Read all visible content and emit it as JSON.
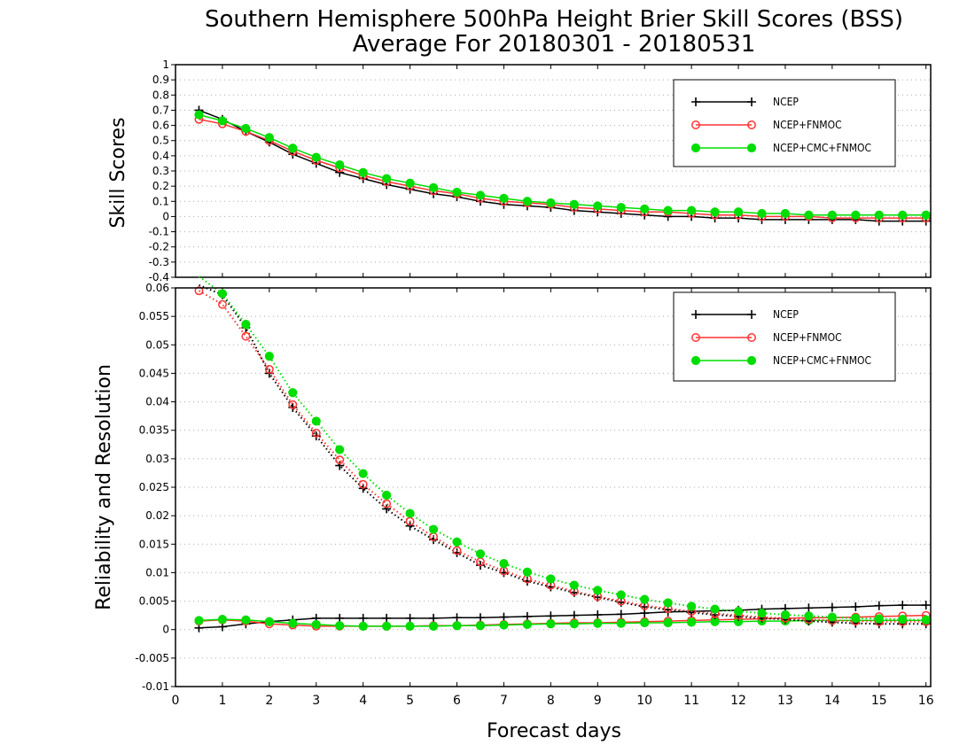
{
  "title_line1": "Southern Hemisphere 500hPa Height Brier Skill Scores (BSS)",
  "title_line2": "Average For 20180301 - 20180531",
  "xlabel": "Forecast days",
  "colors": {
    "NCEP": "#000000",
    "NCEP+FNMOC": "#ff3333",
    "NCEP+CMC+FNMOC": "#00dd00"
  },
  "x_ticks": [
    "0",
    "1",
    "2",
    "3",
    "4",
    "5",
    "6",
    "7",
    "8",
    "9",
    "10",
    "11",
    "12",
    "13",
    "14",
    "15",
    "16"
  ],
  "chart_data": [
    {
      "type": "line",
      "ylabel": "Skill Scores",
      "xlim": [
        0,
        16.1
      ],
      "ylim": [
        -0.4,
        1
      ],
      "grid": "horizontal dotted",
      "legend_placement": "top-right",
      "y_ticks": [
        "1",
        "0.9",
        "0.8",
        "0.7",
        "0.6",
        "0.5",
        "0.4",
        "0.3",
        "0.2",
        "0.1",
        "0",
        "-0.1",
        "-0.2",
        "-0.3",
        "-0.4"
      ],
      "x": [
        0.5,
        1,
        1.5,
        2,
        2.5,
        3,
        3.5,
        4,
        4.5,
        5,
        5.5,
        6,
        6.5,
        7,
        7.5,
        8,
        8.5,
        9,
        9.5,
        10,
        10.5,
        11,
        11.5,
        12,
        12.5,
        13,
        13.5,
        14,
        14.5,
        15,
        15.5,
        16
      ],
      "series": [
        {
          "name": "NCEP",
          "style": "solid",
          "marker": "plus",
          "values": [
            0.7,
            0.64,
            0.56,
            0.49,
            0.41,
            0.35,
            0.29,
            0.25,
            0.21,
            0.18,
            0.15,
            0.13,
            0.1,
            0.08,
            0.07,
            0.06,
            0.04,
            0.03,
            0.02,
            0.01,
            0.0,
            0.0,
            -0.01,
            -0.01,
            -0.02,
            -0.02,
            -0.02,
            -0.02,
            -0.02,
            -0.03,
            -0.03,
            -0.03
          ]
        },
        {
          "name": "NCEP+FNMOC",
          "style": "solid",
          "marker": "open-circle",
          "values": [
            0.64,
            0.61,
            0.56,
            0.5,
            0.43,
            0.37,
            0.32,
            0.27,
            0.23,
            0.2,
            0.17,
            0.15,
            0.12,
            0.1,
            0.09,
            0.08,
            0.06,
            0.05,
            0.04,
            0.03,
            0.03,
            0.02,
            0.01,
            0.01,
            0.0,
            0.0,
            0.0,
            -0.01,
            -0.01,
            -0.01,
            -0.01,
            -0.01
          ]
        },
        {
          "name": "NCEP+CMC+FNMOC",
          "style": "solid",
          "marker": "filled-circle",
          "values": [
            0.67,
            0.63,
            0.58,
            0.52,
            0.45,
            0.39,
            0.34,
            0.29,
            0.25,
            0.22,
            0.19,
            0.16,
            0.14,
            0.12,
            0.1,
            0.09,
            0.08,
            0.07,
            0.06,
            0.05,
            0.04,
            0.04,
            0.03,
            0.03,
            0.02,
            0.02,
            0.01,
            0.01,
            0.01,
            0.01,
            0.01,
            0.01
          ]
        }
      ]
    },
    {
      "type": "line",
      "ylabel": "Reliability and Resolution",
      "xlim": [
        0,
        16.1
      ],
      "ylim": [
        -0.01,
        0.06
      ],
      "grid": "horizontal dotted",
      "legend_placement": "top-right",
      "y_ticks": [
        "0.06",
        "0.055",
        "0.05",
        "0.045",
        "0.04",
        "0.035",
        "0.03",
        "0.025",
        "0.02",
        "0.015",
        "0.01",
        "0.005",
        "0",
        "-0.005",
        "-0.01"
      ],
      "x": [
        0.5,
        1,
        1.5,
        2,
        2.5,
        3,
        3.5,
        4,
        4.5,
        5,
        5.5,
        6,
        6.5,
        7,
        7.5,
        8,
        8.5,
        9,
        9.5,
        10,
        10.5,
        11,
        11.5,
        12,
        12.5,
        13,
        13.5,
        14,
        14.5,
        15,
        15.5,
        16
      ],
      "series": [
        {
          "name": "NCEP",
          "style": "solid",
          "marker": "plus",
          "values": [
            0.0003,
            0.0005,
            0.001,
            0.0014,
            0.0017,
            0.002,
            0.002,
            0.002,
            0.002,
            0.002,
            0.002,
            0.0021,
            0.0021,
            0.0022,
            0.0023,
            0.0024,
            0.0025,
            0.0026,
            0.0027,
            0.0029,
            0.0031,
            0.0032,
            0.0033,
            0.0034,
            0.0036,
            0.0037,
            0.0038,
            0.0039,
            0.004,
            0.0042,
            0.0043,
            0.0043
          ]
        },
        {
          "name": "NCEP+FNMOC",
          "style": "solid",
          "marker": "open-circle",
          "values": [
            0.0015,
            0.0017,
            0.0015,
            0.001,
            0.0008,
            0.0006,
            0.0006,
            0.0006,
            0.0006,
            0.0006,
            0.0007,
            0.0007,
            0.0008,
            0.0009,
            0.001,
            0.0011,
            0.0012,
            0.0012,
            0.0013,
            0.0014,
            0.0015,
            0.0016,
            0.0017,
            0.0018,
            0.0019,
            0.002,
            0.0021,
            0.0021,
            0.0022,
            0.0023,
            0.0024,
            0.0025
          ]
        },
        {
          "name": "NCEP+CMC+FNMOC",
          "style": "solid",
          "marker": "filled-circle",
          "values": [
            0.0016,
            0.0018,
            0.0017,
            0.0014,
            0.0011,
            0.0009,
            0.0007,
            0.0006,
            0.0006,
            0.0006,
            0.0006,
            0.0007,
            0.0007,
            0.0008,
            0.0009,
            0.001,
            0.001,
            0.0011,
            0.0011,
            0.0012,
            0.0012,
            0.0013,
            0.0014,
            0.0014,
            0.0015,
            0.0015,
            0.0016,
            0.0016,
            0.0016,
            0.0016,
            0.0016,
            0.0016
          ]
        },
        {
          "name": "NCEP",
          "style": "dotted",
          "marker": "plus",
          "values": [
            0.0605,
            0.0588,
            0.053,
            0.045,
            0.039,
            0.034,
            0.0288,
            0.0248,
            0.0212,
            0.0182,
            0.0158,
            0.0135,
            0.0113,
            0.01,
            0.0085,
            0.0075,
            0.0065,
            0.0057,
            0.0048,
            0.004,
            0.0035,
            0.003,
            0.0026,
            0.0023,
            0.002,
            0.0018,
            0.0015,
            0.0013,
            0.0011,
            0.001,
            0.001,
            0.001
          ]
        },
        {
          "name": "NCEP+FNMOC",
          "style": "dotted",
          "marker": "open-circle",
          "values": [
            0.0595,
            0.0571,
            0.0515,
            0.0457,
            0.0395,
            0.0345,
            0.0298,
            0.0255,
            0.0221,
            0.019,
            0.0163,
            0.0139,
            0.0119,
            0.0103,
            0.0089,
            0.0078,
            0.0067,
            0.0058,
            0.005,
            0.0042,
            0.0037,
            0.0032,
            0.0028,
            0.0025,
            0.0022,
            0.002,
            0.0018,
            0.0016,
            0.0015,
            0.0014,
            0.0014,
            0.0014
          ]
        },
        {
          "name": "NCEP+CMC+FNMOC",
          "style": "dotted",
          "marker": "filled-circle",
          "values": [
            0.062,
            0.059,
            0.0536,
            0.048,
            0.0416,
            0.0366,
            0.0316,
            0.0274,
            0.0236,
            0.0204,
            0.0176,
            0.0154,
            0.0133,
            0.0116,
            0.0101,
            0.0089,
            0.0078,
            0.0069,
            0.0061,
            0.0053,
            0.0047,
            0.0041,
            0.0036,
            0.0032,
            0.0029,
            0.0026,
            0.0024,
            0.0022,
            0.002,
            0.0019,
            0.0018,
            0.0017
          ]
        }
      ]
    }
  ]
}
